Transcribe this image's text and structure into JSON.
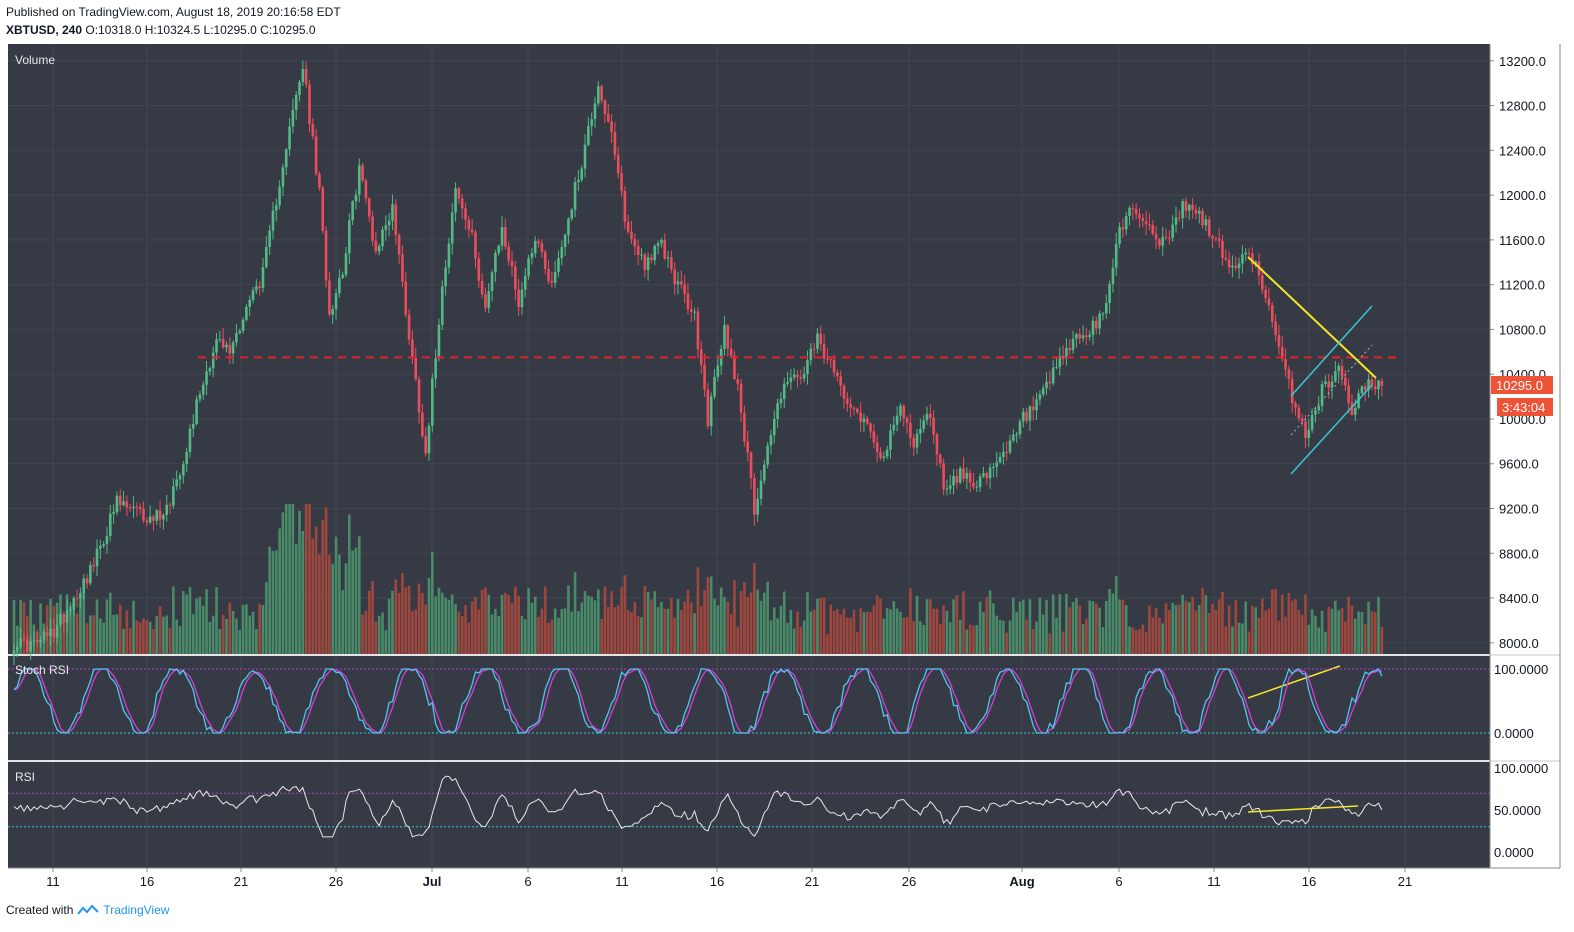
{
  "header": {
    "published": "Published on TradingView.com, August 18, 2019 20:16:58 EDT",
    "symbol": "XBTUSD, 240",
    "ohlc": "O:10318.0 H:10324.5 L:10295.0 C:10295.0"
  },
  "footer": {
    "created_with": "Created with",
    "brand": "TradingView"
  },
  "colors": {
    "bg_pane": "#363a45",
    "up": "#53b987",
    "down": "#eb4d5c",
    "vol_up": "#4c9a6e",
    "vol_down": "#b24a3c",
    "resistance": "#e0232a",
    "trend_yellow": "#f5e52a",
    "channel_cyan": "#39c6d8",
    "stoch_k": "#4cc9ea",
    "stoch_d": "#d43fd8",
    "rsi_line": "#e8e8e8",
    "band_upper": "#b43ad1",
    "band_lower": "#39c6d8",
    "price_badge": "#ef5336"
  },
  "panes": {
    "volume_label": "Volume",
    "stoch_label": "Stoch RSI",
    "rsi_label": "RSI"
  },
  "price_axis": {
    "ticks": [
      "13200.0",
      "12800.0",
      "12400.0",
      "12000.0",
      "11600.0",
      "11200.0",
      "10800.0",
      "10400.0",
      "10000.0",
      "9600.0",
      "9200.0",
      "8800.0",
      "8400.0",
      "8000.0"
    ],
    "last_price": "10295.0",
    "countdown": "3:43:04"
  },
  "stoch_axis": {
    "ticks": [
      "100.0000",
      "0.0000"
    ]
  },
  "rsi_axis": {
    "ticks": [
      "100.0000",
      "50.0000",
      "0.0000"
    ]
  },
  "time_axis": {
    "ticks": [
      "11",
      "16",
      "21",
      "26",
      "Jul",
      "6",
      "11",
      "16",
      "21",
      "26",
      "Aug",
      "6",
      "11",
      "16",
      "21"
    ],
    "bold": [
      "Jul",
      "Aug"
    ]
  },
  "chart_data": {
    "type": "candlestick",
    "symbol": "XBTUSD",
    "interval": "240",
    "ylim": [
      7900,
      13350
    ],
    "resistance_level": 10550,
    "anchors": [
      [
        0,
        8000
      ],
      [
        6,
        7980
      ],
      [
        12,
        8100
      ],
      [
        17,
        8350
      ],
      [
        24,
        8700
      ],
      [
        31,
        9250
      ],
      [
        36,
        9180
      ],
      [
        41,
        9100
      ],
      [
        46,
        9200
      ],
      [
        51,
        9650
      ],
      [
        56,
        10250
      ],
      [
        61,
        10700
      ],
      [
        65,
        10600
      ],
      [
        70,
        11000
      ],
      [
        75,
        11300
      ],
      [
        81,
        12300
      ],
      [
        87,
        13150
      ],
      [
        92,
        12000
      ],
      [
        95,
        10950
      ],
      [
        99,
        11350
      ],
      [
        104,
        12250
      ],
      [
        109,
        11500
      ],
      [
        114,
        11900
      ],
      [
        119,
        10750
      ],
      [
        124,
        9700
      ],
      [
        129,
        11200
      ],
      [
        133,
        12050
      ],
      [
        138,
        11600
      ],
      [
        142,
        11000
      ],
      [
        147,
        11700
      ],
      [
        152,
        11050
      ],
      [
        157,
        11650
      ],
      [
        162,
        11200
      ],
      [
        167,
        11800
      ],
      [
        171,
        12300
      ],
      [
        176,
        13000
      ],
      [
        180,
        12500
      ],
      [
        185,
        11650
      ],
      [
        190,
        11400
      ],
      [
        195,
        11550
      ],
      [
        200,
        11200
      ],
      [
        205,
        10900
      ],
      [
        209,
        10000
      ],
      [
        214,
        10800
      ],
      [
        218,
        10300
      ],
      [
        223,
        9200
      ],
      [
        227,
        9750
      ],
      [
        232,
        10350
      ],
      [
        237,
        10350
      ],
      [
        242,
        10700
      ],
      [
        247,
        10400
      ],
      [
        252,
        10150
      ],
      [
        257,
        9950
      ],
      [
        262,
        9650
      ],
      [
        267,
        10100
      ],
      [
        271,
        9800
      ],
      [
        276,
        10050
      ],
      [
        280,
        9400
      ],
      [
        285,
        9500
      ],
      [
        290,
        9450
      ],
      [
        294,
        9500
      ],
      [
        299,
        9700
      ],
      [
        304,
        10000
      ],
      [
        309,
        10150
      ],
      [
        314,
        10450
      ],
      [
        319,
        10700
      ],
      [
        323,
        10750
      ],
      [
        328,
        10900
      ],
      [
        333,
        11700
      ],
      [
        337,
        11900
      ],
      [
        342,
        11700
      ],
      [
        347,
        11550
      ],
      [
        352,
        11900
      ],
      [
        356,
        11850
      ],
      [
        361,
        11650
      ],
      [
        366,
        11350
      ],
      [
        371,
        11450
      ],
      [
        375,
        11350
      ],
      [
        380,
        10700
      ],
      [
        385,
        10200
      ],
      [
        389,
        9850
      ],
      [
        394,
        10250
      ],
      [
        399,
        10450
      ],
      [
        403,
        10100
      ],
      [
        408,
        10330
      ],
      [
        412,
        10295
      ]
    ],
    "annotations": {
      "yellow_trendline": [
        [
          1248,
          257
        ],
        [
          1376,
          378
        ]
      ],
      "cyan_channel_upper": [
        [
          1291,
          396
        ],
        [
          1372,
          306
        ]
      ],
      "cyan_channel_lower": [
        [
          1291,
          474
        ],
        [
          1372,
          385
        ]
      ],
      "dotted_mid": [
        [
          1291,
          435
        ],
        [
          1372,
          345
        ]
      ],
      "stoch_divergence": [
        [
          1248,
          698
        ],
        [
          1340,
          666
        ]
      ],
      "rsi_divergence": [
        [
          1248,
          812
        ],
        [
          1358,
          806
        ]
      ]
    }
  }
}
